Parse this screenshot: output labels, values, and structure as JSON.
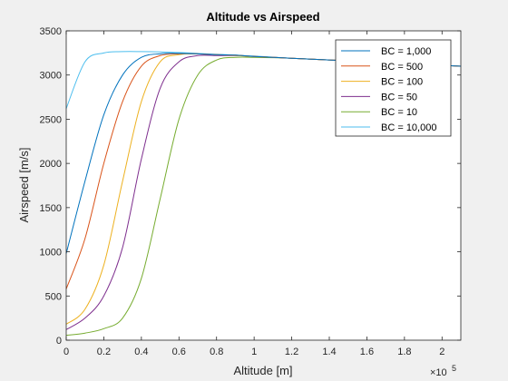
{
  "chart_data": {
    "type": "line",
    "title": "Altitude vs Airspeed",
    "xlabel": "Altitude [m]",
    "ylabel": "Airspeed [m/s]",
    "x_exponent_base": "×10",
    "x_exponent_power": "5",
    "xlim": [
      0,
      210000
    ],
    "ylim": [
      0,
      3500
    ],
    "xticks": [
      0,
      20000,
      40000,
      60000,
      80000,
      100000,
      120000,
      140000,
      160000,
      180000,
      200000
    ],
    "xtick_labels": [
      "0",
      "0.2",
      "0.4",
      "0.6",
      "0.8",
      "1",
      "1.2",
      "1.4",
      "1.6",
      "1.8",
      "2"
    ],
    "yticks": [
      0,
      500,
      1000,
      1500,
      2000,
      2500,
      3000,
      3500
    ],
    "ytick_labels": [
      "0",
      "500",
      "1000",
      "1500",
      "2000",
      "2500",
      "3000",
      "3500"
    ],
    "grid": false,
    "legend_position": "top-right",
    "x": [
      0,
      10000,
      20000,
      30000,
      40000,
      50000,
      60000,
      70000,
      80000,
      90000,
      100000,
      120000,
      140000,
      160000,
      180000,
      200000,
      210000
    ],
    "series": [
      {
        "name": "BC = 1,000",
        "color": "#0072BD",
        "values": [
          980,
          1800,
          2550,
          3000,
          3200,
          3240,
          3245,
          3240,
          3230,
          3225,
          3210,
          3190,
          3170,
          3150,
          3130,
          3110,
          3100
        ]
      },
      {
        "name": "BC = 500",
        "color": "#D95319",
        "values": [
          580,
          1150,
          2000,
          2700,
          3100,
          3220,
          3240,
          3240,
          3230,
          3225,
          3210,
          3190,
          3170,
          3150,
          3130,
          3110,
          3100
        ]
      },
      {
        "name": "BC = 100",
        "color": "#EDB120",
        "values": [
          180,
          350,
          850,
          1800,
          2700,
          3150,
          3230,
          3240,
          3230,
          3222,
          3210,
          3190,
          3170,
          3150,
          3130,
          3110,
          3100
        ]
      },
      {
        "name": "BC = 50",
        "color": "#7E2F8E",
        "values": [
          120,
          250,
          500,
          1050,
          2050,
          2850,
          3150,
          3220,
          3220,
          3220,
          3210,
          3190,
          3170,
          3150,
          3130,
          3110,
          3100
        ]
      },
      {
        "name": "BC = 10",
        "color": "#77AC30",
        "values": [
          55,
          80,
          130,
          250,
          700,
          1600,
          2500,
          3000,
          3170,
          3200,
          3200,
          3190,
          3170,
          3150,
          3130,
          3110,
          3100
        ]
      },
      {
        "name": "BC = 10,000",
        "color": "#4DBEEE",
        "values": [
          2620,
          3150,
          3250,
          3265,
          3265,
          3262,
          3255,
          3245,
          3235,
          3225,
          3215,
          3190,
          3170,
          3150,
          3130,
          3110,
          3100
        ]
      }
    ]
  }
}
